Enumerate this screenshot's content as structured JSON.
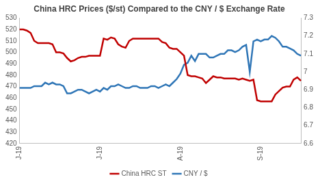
{
  "chart_data": {
    "type": "line",
    "title": "China HRC Prices ($/st) Compared to the CNY / $ Exchange Rate",
    "categories": [
      "J-19",
      null,
      null,
      null,
      null,
      null,
      null,
      null,
      null,
      null,
      null,
      null,
      null,
      null,
      null,
      null,
      null,
      null,
      null,
      null,
      null,
      null,
      "J-19",
      null,
      null,
      null,
      null,
      null,
      null,
      null,
      null,
      null,
      null,
      null,
      null,
      null,
      null,
      null,
      null,
      null,
      null,
      null,
      null,
      null,
      "A-19",
      null,
      null,
      null,
      null,
      null,
      null,
      null,
      null,
      null,
      null,
      null,
      null,
      null,
      null,
      null,
      null,
      null,
      null,
      null,
      null,
      null,
      "S-19",
      null,
      null,
      null,
      null,
      null,
      null,
      null,
      null,
      null,
      null,
      null
    ],
    "series": [
      {
        "name": "China HRC ST",
        "color": "#c00000",
        "values": [
          520,
          520,
          519,
          517,
          510,
          508,
          508,
          508,
          508,
          507,
          500,
          500,
          499,
          495,
          492,
          493,
          495,
          496,
          496,
          497,
          497,
          497,
          497,
          512,
          511,
          513,
          512,
          507,
          505,
          504,
          510,
          512,
          512,
          512,
          512,
          512,
          512,
          512,
          512,
          509,
          508,
          504,
          503,
          503,
          500,
          497,
          480,
          479,
          479,
          478,
          477,
          473,
          476,
          479,
          478,
          478,
          477,
          477,
          477,
          477,
          476,
          477,
          476,
          475,
          476,
          458,
          457,
          457,
          457,
          457,
          463,
          466,
          469,
          470,
          470,
          476,
          478,
          475
        ]
      },
      {
        "name": "CNY / $",
        "color": "#2e75b6",
        "axis": "y2",
        "values": [
          6.91,
          6.91,
          6.91,
          6.91,
          6.92,
          6.92,
          6.92,
          6.94,
          6.93,
          6.94,
          6.93,
          6.93,
          6.92,
          6.88,
          6.88,
          6.89,
          6.9,
          6.9,
          6.89,
          6.88,
          6.89,
          6.9,
          6.89,
          6.91,
          6.9,
          6.92,
          6.92,
          6.93,
          6.92,
          6.91,
          6.91,
          6.92,
          6.92,
          6.91,
          6.91,
          6.91,
          6.92,
          6.92,
          6.91,
          6.92,
          6.93,
          6.92,
          6.94,
          6.96,
          6.99,
          7.04,
          7.05,
          7.09,
          7.06,
          7.1,
          7.1,
          7.1,
          7.08,
          7.08,
          7.09,
          7.1,
          7.1,
          7.12,
          7.12,
          7.11,
          7.12,
          7.14,
          7.15,
          7.0,
          7.17,
          7.18,
          7.17,
          7.18,
          7.18,
          7.2,
          7.19,
          7.17,
          7.14,
          7.14,
          7.13,
          7.12,
          7.1,
          7.09
        ]
      }
    ],
    "ylim": [
      420,
      530
    ],
    "yticks": [
      420,
      430,
      440,
      450,
      460,
      470,
      480,
      490,
      500,
      510,
      520,
      530
    ],
    "y2lim": [
      6.6,
      7.3
    ],
    "y2ticks": [
      6.6,
      6.7,
      6.8,
      6.9,
      7,
      7.1,
      7.2,
      7.3
    ],
    "grid": false,
    "legend": "bottom"
  }
}
